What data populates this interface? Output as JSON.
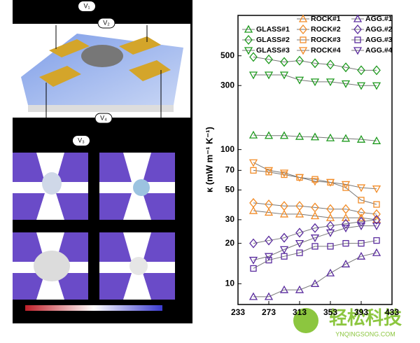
{
  "schematic": {
    "labels": [
      "V₁",
      "V₂",
      "V₄",
      "V₃"
    ]
  },
  "watermark": {
    "text": "轻松科技",
    "url": "YNQINGSONG.COM"
  },
  "chart_data": {
    "type": "line",
    "ylabel": "κ (mW m⁻¹ K⁻¹)",
    "x": [
      253,
      273,
      293,
      313,
      333,
      353,
      373,
      393,
      413
    ],
    "xlim": [
      233,
      433
    ],
    "xticks": [
      233,
      273,
      313,
      353,
      393,
      433
    ],
    "ylim": [
      7,
      1000
    ],
    "yticks": [
      10,
      20,
      30,
      50,
      70,
      100,
      300,
      500
    ],
    "yscale": "log",
    "series": [
      {
        "name": "GLASS#1",
        "color": "#1e9a1e",
        "marker": "triangle-up",
        "values": [
          128,
          127,
          127,
          125,
          124,
          122,
          121,
          119,
          116
        ]
      },
      {
        "name": "GLASS#2",
        "color": "#1e9a1e",
        "marker": "diamond",
        "values": [
          490,
          470,
          450,
          460,
          440,
          430,
          410,
          390,
          390
        ]
      },
      {
        "name": "GLASS#3",
        "color": "#1e9a1e",
        "marker": "triangle-down",
        "values": [
          360,
          360,
          360,
          330,
          320,
          320,
          310,
          300,
          300
        ]
      },
      {
        "name": "ROCK#1",
        "color": "#f28c28",
        "marker": "triangle-up",
        "values": [
          35,
          34,
          33,
          33,
          32,
          31,
          31,
          31,
          30
        ]
      },
      {
        "name": "ROCK#2",
        "color": "#f28c28",
        "marker": "diamond",
        "values": [
          40,
          39,
          38,
          38,
          37,
          36,
          36,
          34,
          33
        ]
      },
      {
        "name": "ROCK#3",
        "color": "#f28c28",
        "marker": "square",
        "values": [
          70,
          68,
          65,
          62,
          60,
          57,
          52,
          42,
          39
        ]
      },
      {
        "name": "ROCK#4",
        "color": "#f28c28",
        "marker": "triangle-down",
        "values": [
          80,
          70,
          67,
          62,
          58,
          57,
          55,
          52,
          51
        ]
      },
      {
        "name": "AGG.#1",
        "color": "#5a2c9e",
        "marker": "triangle-up",
        "values": [
          8,
          8,
          9,
          9,
          10,
          12,
          14,
          16,
          17
        ]
      },
      {
        "name": "AGG.#2",
        "color": "#5a2c9e",
        "marker": "diamond",
        "values": [
          20,
          21,
          22,
          24,
          26,
          27,
          28,
          29,
          30
        ]
      },
      {
        "name": "AGG.#3",
        "color": "#5a2c9e",
        "marker": "square",
        "values": [
          13,
          15,
          16,
          17,
          19,
          19,
          20,
          20,
          21
        ]
      },
      {
        "name": "AGG.#4",
        "color": "#5a2c9e",
        "marker": "triangle-down",
        "values": [
          15,
          16,
          18,
          20,
          22,
          24,
          26,
          27,
          27
        ]
      }
    ]
  }
}
